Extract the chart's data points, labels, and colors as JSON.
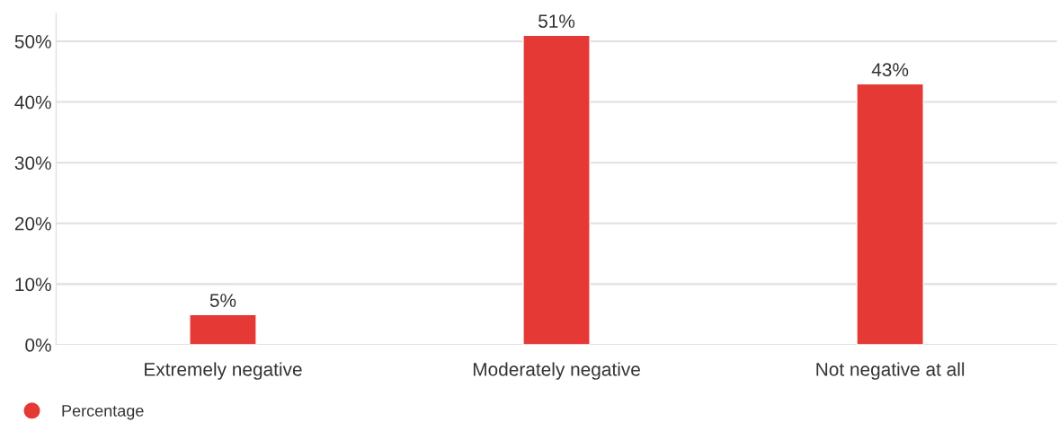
{
  "chart_data": {
    "type": "bar",
    "categories": [
      "Extremely negative",
      "Moderately negative",
      "Not negative at all"
    ],
    "series": [
      {
        "name": "Percentage",
        "color": "#e53935",
        "values": [
          5,
          51,
          43
        ],
        "value_labels": [
          "5%",
          "51%",
          "43%"
        ]
      }
    ],
    "ylim": [
      0,
      54.6
    ],
    "yticks": [
      {
        "value": 0,
        "label": "0%"
      },
      {
        "value": 10,
        "label": "10%"
      },
      {
        "value": 20,
        "label": "20%"
      },
      {
        "value": 30,
        "label": "30%"
      },
      {
        "value": 40,
        "label": "40%"
      },
      {
        "value": 50,
        "label": "50%"
      }
    ],
    "grid": "y",
    "legend": "bottom left",
    "marker": "circle"
  }
}
